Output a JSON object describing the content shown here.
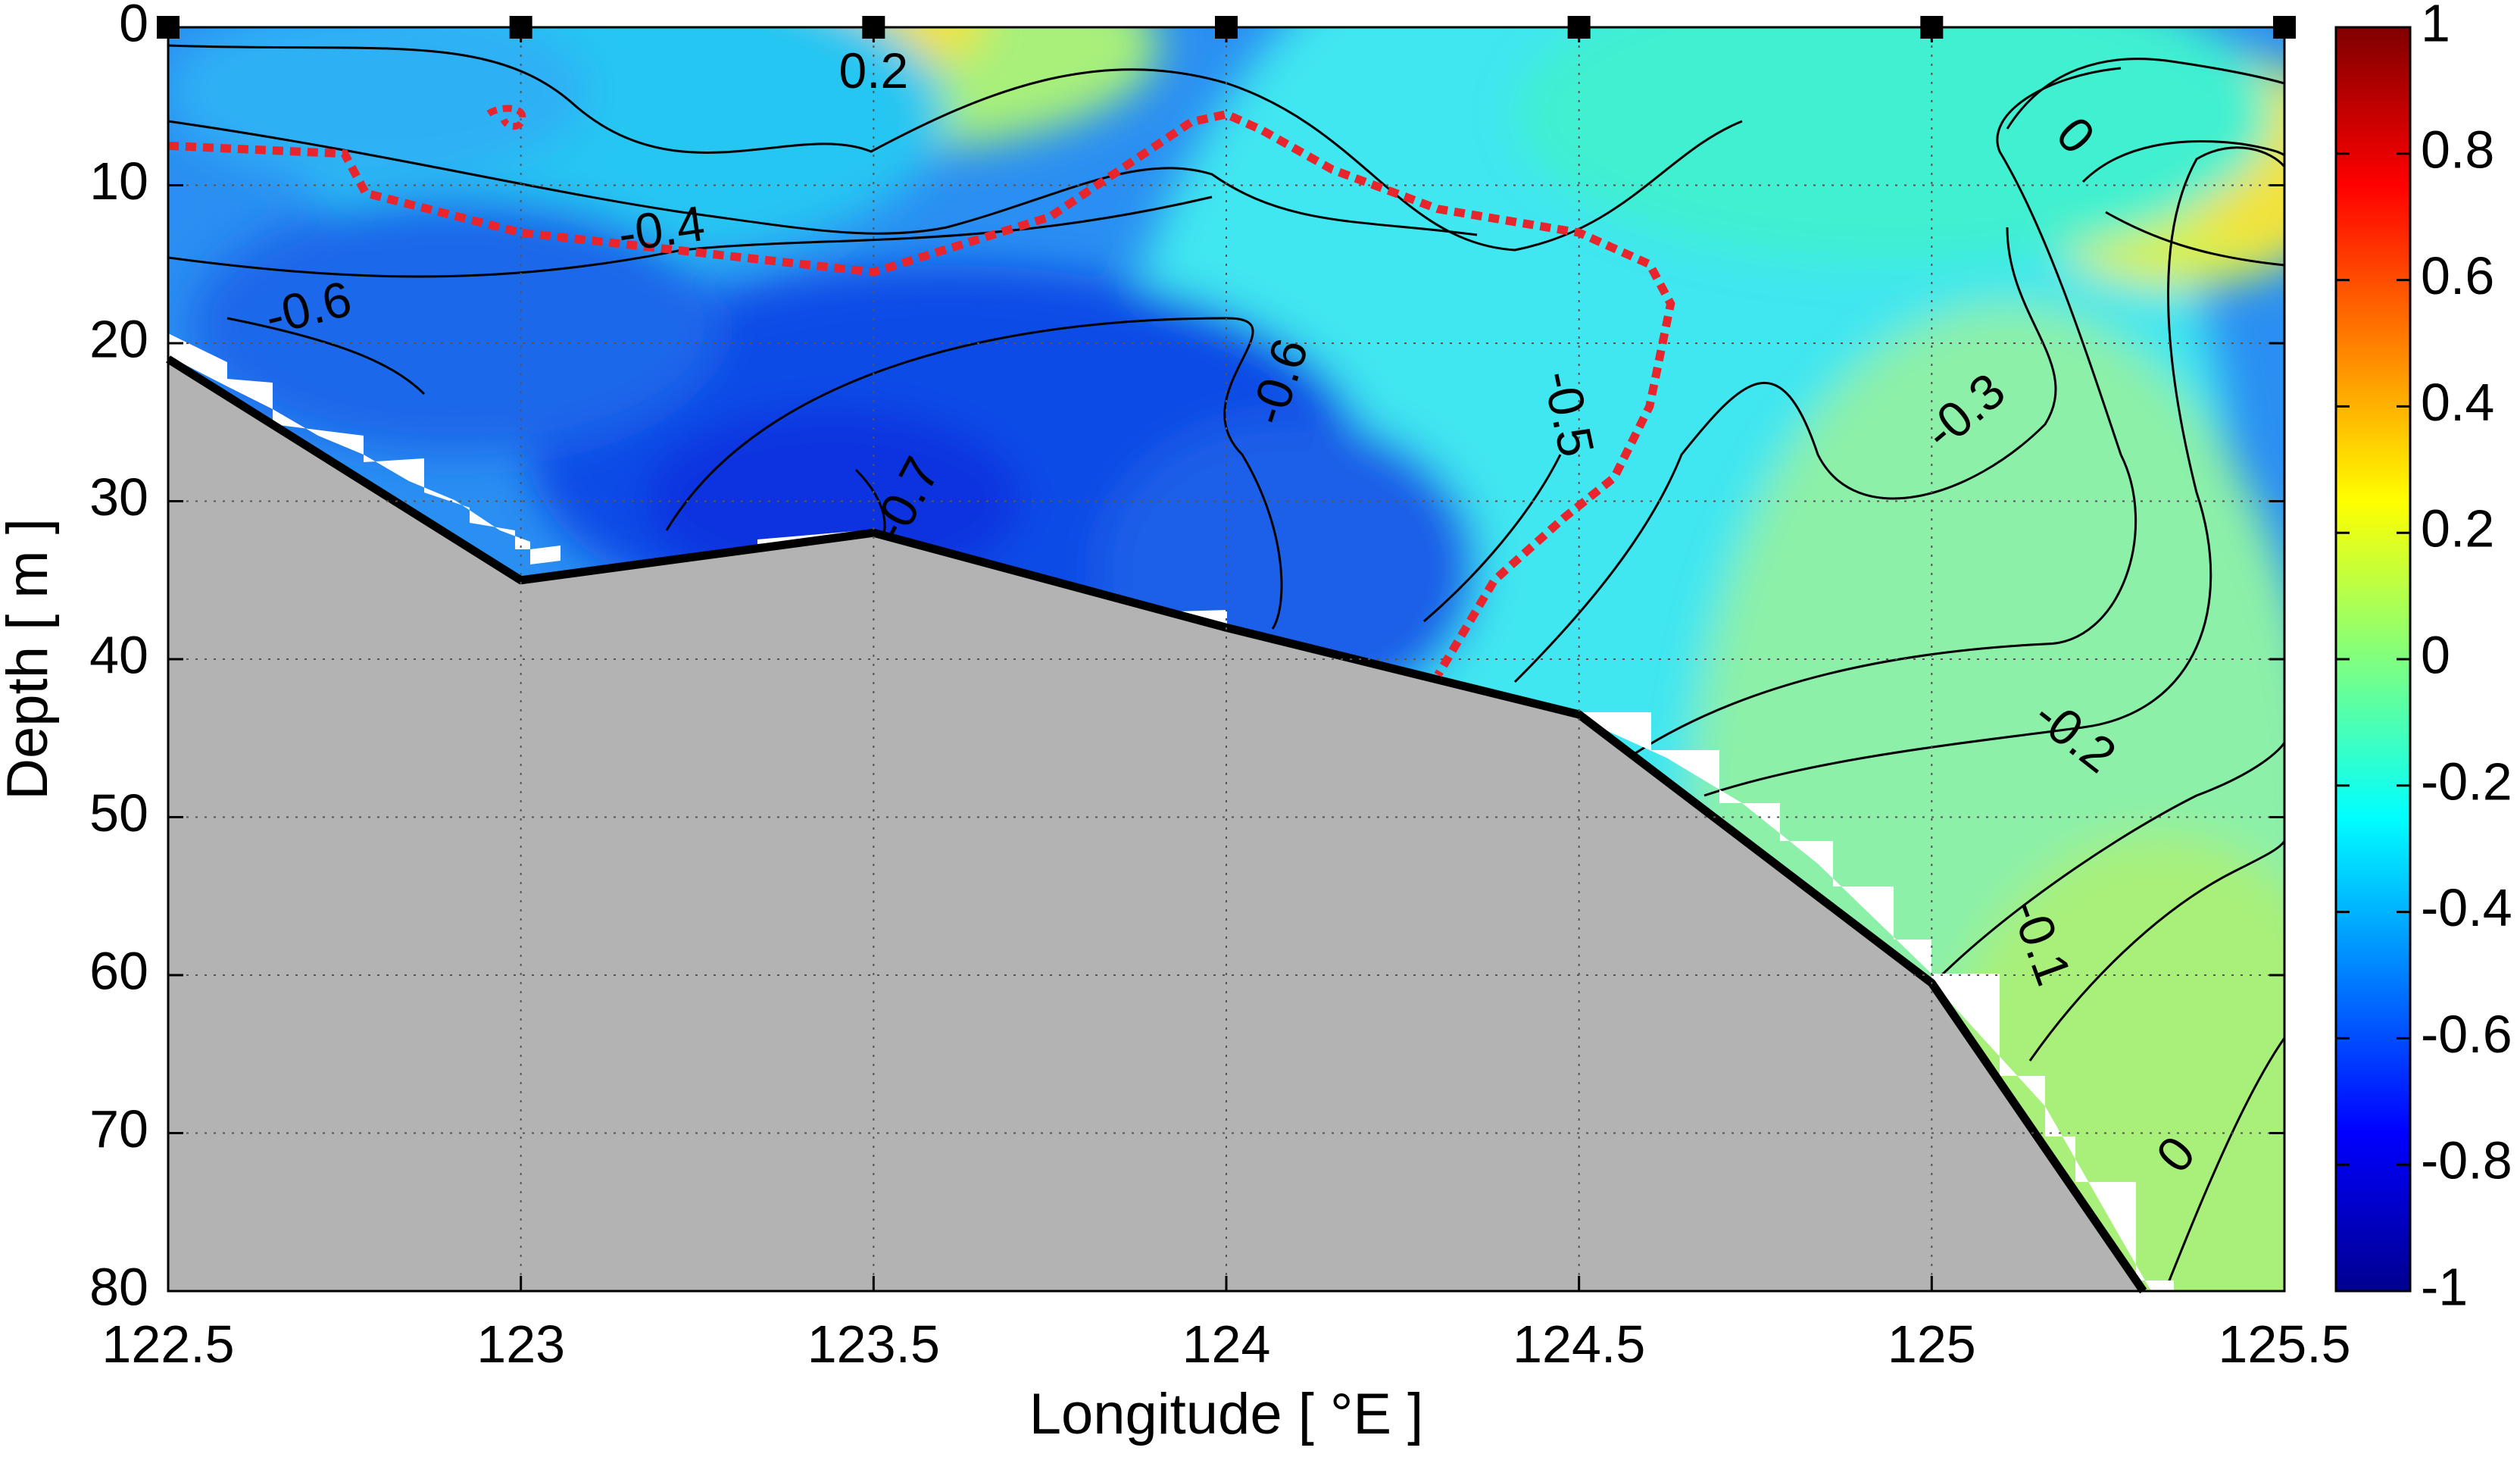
{
  "chart_data": {
    "type": "heatmap",
    "title": "",
    "xlabel": "Longitude [ °E ]",
    "ylabel": "Depth [ m ]",
    "xlim": [
      122.5,
      125.5
    ],
    "ylim": [
      0,
      80
    ],
    "y_reversed": true,
    "xticks": [
      122.5,
      123,
      123.5,
      124,
      124.5,
      125,
      125.5
    ],
    "xtick_labels": [
      "122.5",
      "123",
      "123.5",
      "124",
      "124.5",
      "125",
      "125.5"
    ],
    "yticks": [
      0,
      10,
      20,
      30,
      40,
      50,
      60,
      70,
      80
    ],
    "ytick_labels": [
      "0",
      "10",
      "20",
      "30",
      "40",
      "50",
      "60",
      "70",
      "80"
    ],
    "grid": true,
    "colormap": "jet",
    "colorbar": {
      "range": [
        -1,
        1
      ],
      "ticks": [
        -1,
        -0.8,
        -0.6,
        -0.4,
        -0.2,
        0,
        0.2,
        0.4,
        0.6,
        0.8,
        1
      ],
      "tick_labels": [
        "-1",
        "-0.8",
        "-0.6",
        "-0.4",
        "-0.2",
        "0",
        "0.2",
        "0.4",
        "0.6",
        "0.8",
        "1"
      ]
    },
    "stations_lon": [
      122.5,
      123,
      123.5,
      124,
      124.5,
      125,
      125.5
    ],
    "bathymetry": [
      {
        "lon": 122.5,
        "depth": 21
      },
      {
        "lon": 123.0,
        "depth": 35
      },
      {
        "lon": 123.5,
        "depth": 32
      },
      {
        "lon": 124.0,
        "depth": 38
      },
      {
        "lon": 124.5,
        "depth": 43.5
      },
      {
        "lon": 125.0,
        "depth": 60.5
      },
      {
        "lon": 125.3,
        "depth": 80
      }
    ],
    "contour_labels": [
      {
        "text": "0.2",
        "lon": 123.5,
        "depth": 3,
        "angle": 0
      },
      {
        "text": "-0.4",
        "lon": 123.2,
        "depth": 13,
        "angle": -8
      },
      {
        "text": "-0.6",
        "lon": 122.7,
        "depth": 18,
        "angle": -14
      },
      {
        "text": "-0.7",
        "lon": 123.55,
        "depth": 30,
        "angle": -62
      },
      {
        "text": "-0.6",
        "lon": 124.08,
        "depth": 22.5,
        "angle": -72
      },
      {
        "text": "-0.5",
        "lon": 124.48,
        "depth": 24.5,
        "angle": 78
      },
      {
        "text": "-0.3",
        "lon": 125.05,
        "depth": 24.5,
        "angle": -40
      },
      {
        "text": "0",
        "lon": 125.2,
        "depth": 7,
        "angle": 48
      },
      {
        "text": "-0.2",
        "lon": 125.2,
        "depth": 45,
        "angle": 38
      },
      {
        "text": "-0.1",
        "lon": 125.15,
        "depth": 58,
        "angle": 70
      },
      {
        "text": "0",
        "lon": 125.35,
        "depth": 71.5,
        "angle": -50
      }
    ],
    "highlight_contour": {
      "style": "red dashed",
      "points": [
        [
          122.5,
          7.5
        ],
        [
          122.75,
          8
        ],
        [
          122.78,
          10.5
        ],
        [
          123.0,
          13
        ],
        [
          123.5,
          15.5
        ],
        [
          123.75,
          12
        ],
        [
          123.95,
          6
        ],
        [
          124.0,
          5.5
        ],
        [
          124.05,
          6.5
        ],
        [
          124.15,
          9
        ],
        [
          124.3,
          11.5
        ],
        [
          124.5,
          13
        ],
        [
          124.6,
          15
        ],
        [
          124.63,
          17.5
        ],
        [
          124.6,
          24
        ],
        [
          124.55,
          28.5
        ],
        [
          124.48,
          31
        ],
        [
          124.38,
          35
        ],
        [
          124.3,
          41
        ]
      ]
    }
  }
}
